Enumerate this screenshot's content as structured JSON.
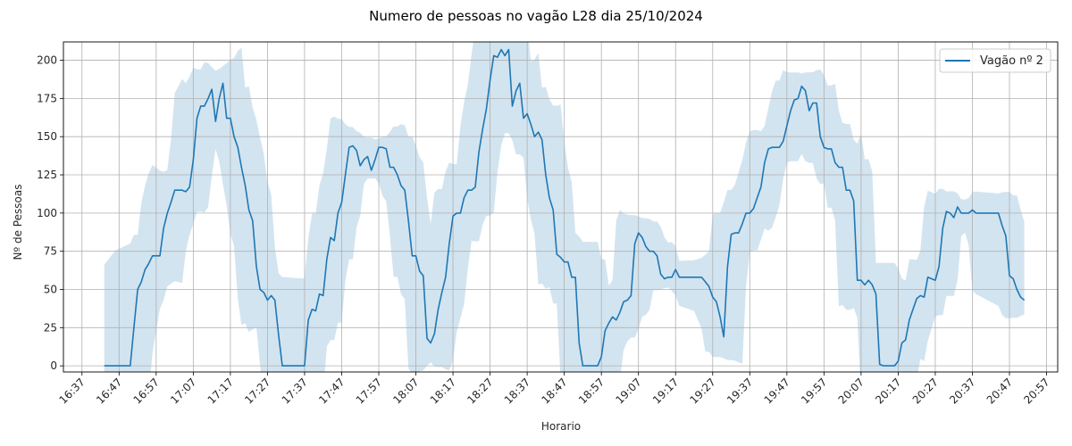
{
  "chart_data": {
    "type": "line",
    "title": "Numero de pessoas no vagão L28 dia 25/10/2024",
    "xlabel": "Horario",
    "ylabel": "Nº de Pessoas",
    "xlim": [
      "16:32",
      "21:00"
    ],
    "ylim": [
      -4,
      212
    ],
    "grid": true,
    "legend_position": "top-right",
    "x_ticks": [
      "16:37",
      "16:47",
      "16:57",
      "17:07",
      "17:17",
      "17:27",
      "17:37",
      "17:47",
      "17:57",
      "18:07",
      "18:17",
      "18:27",
      "18:37",
      "18:47",
      "18:57",
      "19:07",
      "19:17",
      "19:27",
      "19:37",
      "19:47",
      "19:57",
      "20:07",
      "20:17",
      "20:27",
      "20:37",
      "20:47",
      "20:57"
    ],
    "y_ticks": [
      0,
      25,
      50,
      75,
      100,
      125,
      150,
      175,
      200
    ],
    "series": [
      {
        "name": "Vagão nº 2",
        "color": "#1f77b4",
        "band_color": "#1f77b4",
        "points": [
          [
            "16:43",
            0
          ],
          [
            "16:46",
            0
          ],
          [
            "16:50",
            0
          ],
          [
            "16:51",
            25
          ],
          [
            "16:52",
            50
          ],
          [
            "16:53",
            55
          ],
          [
            "16:54",
            63
          ],
          [
            "16:55",
            67
          ],
          [
            "16:56",
            72
          ],
          [
            "16:58",
            72
          ],
          [
            "16:59",
            90
          ],
          [
            "17:00",
            100
          ],
          [
            "17:01",
            107
          ],
          [
            "17:02",
            115
          ],
          [
            "17:04",
            115
          ],
          [
            "17:05",
            114
          ],
          [
            "17:06",
            117
          ],
          [
            "17:07",
            135
          ],
          [
            "17:08",
            162
          ],
          [
            "17:09",
            170
          ],
          [
            "17:10",
            170
          ],
          [
            "17:11",
            175
          ],
          [
            "17:12",
            181
          ],
          [
            "17:13",
            160
          ],
          [
            "17:14",
            175
          ],
          [
            "17:15",
            185
          ],
          [
            "17:16",
            162
          ],
          [
            "17:17",
            162
          ],
          [
            "17:18",
            150
          ],
          [
            "17:19",
            143
          ],
          [
            "17:20",
            130
          ],
          [
            "17:21",
            118
          ],
          [
            "17:22",
            102
          ],
          [
            "17:23",
            95
          ],
          [
            "17:24",
            65
          ],
          [
            "17:25",
            50
          ],
          [
            "17:26",
            48
          ],
          [
            "17:27",
            43
          ],
          [
            "17:28",
            46
          ],
          [
            "17:29",
            43
          ],
          [
            "17:30",
            20
          ],
          [
            "17:31",
            0
          ],
          [
            "17:37",
            0
          ],
          [
            "17:38",
            30
          ],
          [
            "17:39",
            37
          ],
          [
            "17:40",
            36
          ],
          [
            "17:41",
            47
          ],
          [
            "17:42",
            46
          ],
          [
            "17:43",
            70
          ],
          [
            "17:44",
            84
          ],
          [
            "17:45",
            82
          ],
          [
            "17:46",
            100
          ],
          [
            "17:47",
            107
          ],
          [
            "17:48",
            125
          ],
          [
            "17:49",
            143
          ],
          [
            "17:50",
            144
          ],
          [
            "17:51",
            141
          ],
          [
            "17:52",
            131
          ],
          [
            "17:53",
            135
          ],
          [
            "17:54",
            137
          ],
          [
            "17:55",
            128
          ],
          [
            "17:56",
            135
          ],
          [
            "17:57",
            143
          ],
          [
            "17:58",
            143
          ],
          [
            "17:59",
            142
          ],
          [
            "18:00",
            130
          ],
          [
            "18:01",
            130
          ],
          [
            "18:02",
            125
          ],
          [
            "18:03",
            118
          ],
          [
            "18:04",
            115
          ],
          [
            "18:05",
            95
          ],
          [
            "18:06",
            72
          ],
          [
            "18:07",
            72
          ],
          [
            "18:08",
            62
          ],
          [
            "18:09",
            59
          ],
          [
            "18:10",
            18
          ],
          [
            "18:11",
            15
          ],
          [
            "18:12",
            21
          ],
          [
            "18:13",
            37
          ],
          [
            "18:14",
            48
          ],
          [
            "18:15",
            58
          ],
          [
            "18:16",
            80
          ],
          [
            "18:17",
            98
          ],
          [
            "18:18",
            100
          ],
          [
            "18:19",
            100
          ],
          [
            "18:20",
            110
          ],
          [
            "18:21",
            115
          ],
          [
            "18:22",
            115
          ],
          [
            "18:23",
            117
          ],
          [
            "18:24",
            140
          ],
          [
            "18:25",
            155
          ],
          [
            "18:26",
            168
          ],
          [
            "18:27",
            187
          ],
          [
            "18:28",
            203
          ],
          [
            "18:29",
            202
          ],
          [
            "18:30",
            207
          ],
          [
            "18:31",
            203
          ],
          [
            "18:32",
            207
          ],
          [
            "18:33",
            170
          ],
          [
            "18:34",
            180
          ],
          [
            "18:35",
            185
          ],
          [
            "18:36",
            162
          ],
          [
            "18:37",
            165
          ],
          [
            "18:38",
            158
          ],
          [
            "18:39",
            150
          ],
          [
            "18:40",
            153
          ],
          [
            "18:41",
            148
          ],
          [
            "18:42",
            125
          ],
          [
            "18:43",
            110
          ],
          [
            "18:44",
            102
          ],
          [
            "18:45",
            73
          ],
          [
            "18:46",
            71
          ],
          [
            "18:47",
            68
          ],
          [
            "18:48",
            68
          ],
          [
            "18:49",
            58
          ],
          [
            "18:50",
            58
          ],
          [
            "18:51",
            15
          ],
          [
            "18:52",
            0
          ],
          [
            "18:56",
            0
          ],
          [
            "18:57",
            6
          ],
          [
            "18:58",
            23
          ],
          [
            "18:59",
            28
          ],
          [
            "19:00",
            32
          ],
          [
            "19:01",
            30
          ],
          [
            "19:02",
            35
          ],
          [
            "19:03",
            42
          ],
          [
            "19:04",
            43
          ],
          [
            "19:05",
            46
          ],
          [
            "19:06",
            80
          ],
          [
            "19:07",
            87
          ],
          [
            "19:08",
            84
          ],
          [
            "19:09",
            78
          ],
          [
            "19:10",
            75
          ],
          [
            "19:11",
            75
          ],
          [
            "19:12",
            72
          ],
          [
            "19:13",
            60
          ],
          [
            "19:14",
            57
          ],
          [
            "19:15",
            58
          ],
          [
            "19:16",
            58
          ],
          [
            "19:17",
            63
          ],
          [
            "19:18",
            58
          ],
          [
            "19:22",
            58
          ],
          [
            "19:24",
            58
          ],
          [
            "19:25",
            55
          ],
          [
            "19:26",
            52
          ],
          [
            "19:27",
            45
          ],
          [
            "19:28",
            42
          ],
          [
            "19:29",
            32
          ],
          [
            "19:30",
            19
          ],
          [
            "19:31",
            65
          ],
          [
            "19:32",
            86
          ],
          [
            "19:33",
            87
          ],
          [
            "19:34",
            87
          ],
          [
            "19:35",
            93
          ],
          [
            "19:36",
            100
          ],
          [
            "19:37",
            100
          ],
          [
            "19:38",
            103
          ],
          [
            "19:39",
            110
          ],
          [
            "19:40",
            117
          ],
          [
            "19:41",
            133
          ],
          [
            "19:42",
            142
          ],
          [
            "19:43",
            143
          ],
          [
            "19:44",
            143
          ],
          [
            "19:45",
            143
          ],
          [
            "19:46",
            147
          ],
          [
            "19:47",
            157
          ],
          [
            "19:48",
            167
          ],
          [
            "19:49",
            174
          ],
          [
            "19:50",
            175
          ],
          [
            "19:51",
            183
          ],
          [
            "19:52",
            180
          ],
          [
            "19:53",
            167
          ],
          [
            "19:54",
            172
          ],
          [
            "19:55",
            172
          ],
          [
            "19:56",
            150
          ],
          [
            "19:57",
            143
          ],
          [
            "19:58",
            142
          ],
          [
            "19:59",
            142
          ],
          [
            "20:00",
            133
          ],
          [
            "20:01",
            130
          ],
          [
            "20:02",
            130
          ],
          [
            "20:03",
            115
          ],
          [
            "20:04",
            115
          ],
          [
            "20:05",
            108
          ],
          [
            "20:06",
            56
          ],
          [
            "20:07",
            56
          ],
          [
            "20:08",
            53
          ],
          [
            "20:09",
            56
          ],
          [
            "20:10",
            53
          ],
          [
            "20:11",
            47
          ],
          [
            "20:12",
            1
          ],
          [
            "20:13",
            0
          ],
          [
            "20:16",
            0
          ],
          [
            "20:17",
            3
          ],
          [
            "20:18",
            15
          ],
          [
            "20:19",
            17
          ],
          [
            "20:20",
            30
          ],
          [
            "20:21",
            37
          ],
          [
            "20:22",
            44
          ],
          [
            "20:23",
            46
          ],
          [
            "20:24",
            45
          ],
          [
            "20:25",
            58
          ],
          [
            "20:26",
            57
          ],
          [
            "20:27",
            56
          ],
          [
            "20:28",
            65
          ],
          [
            "20:29",
            90
          ],
          [
            "20:30",
            101
          ],
          [
            "20:31",
            100
          ],
          [
            "20:32",
            97
          ],
          [
            "20:33",
            104
          ],
          [
            "20:34",
            100
          ],
          [
            "20:35",
            100
          ],
          [
            "20:36",
            100
          ],
          [
            "20:37",
            102
          ],
          [
            "20:38",
            100
          ],
          [
            "20:44",
            100
          ],
          [
            "20:45",
            92
          ],
          [
            "20:46",
            85
          ],
          [
            "20:47",
            59
          ],
          [
            "20:48",
            57
          ],
          [
            "20:49",
            50
          ],
          [
            "20:50",
            45
          ],
          [
            "20:51",
            43
          ]
        ]
      }
    ]
  }
}
